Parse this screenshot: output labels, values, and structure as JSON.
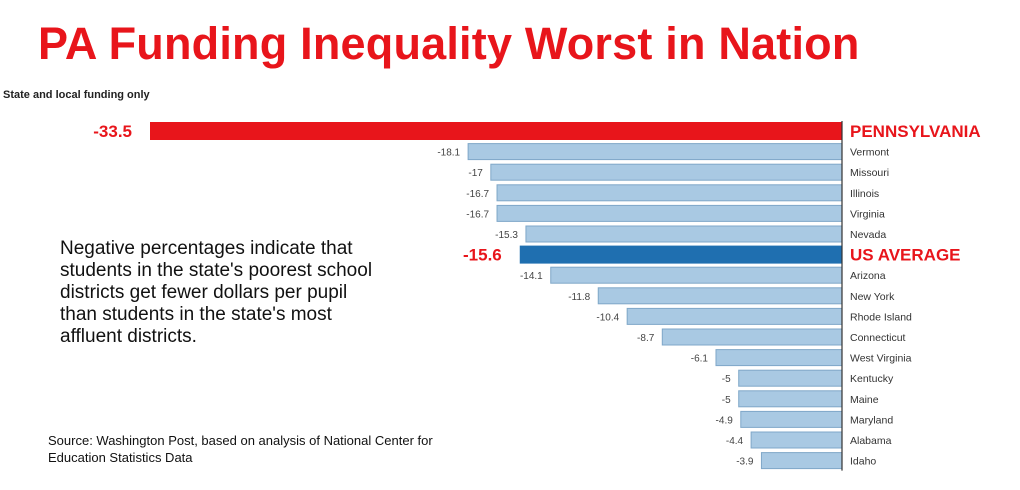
{
  "title": "PA Funding Inequality Worst in Nation",
  "note": "Negative percentages indicate that students in the state's poorest school districts get fewer dollars per pupil than students in the state's most affluent districts.",
  "source": "Source: Washington Post, based on analysis of National Center for Education Statistics Data",
  "chart_data": {
    "type": "bar",
    "orientation": "horizontal",
    "subtitle": "State and local funding only",
    "categories": [
      "PENNSYLVANIA",
      "Vermont",
      "Missouri",
      "Illinois",
      "Virginia",
      "Nevada",
      "US AVERAGE",
      "Arizona",
      "New York",
      "Rhode Island",
      "Connecticut",
      "West Virginia",
      "Kentucky",
      "Maine",
      "Maryland",
      "Alabama",
      "Idaho"
    ],
    "values": [
      -33.5,
      -18.1,
      -17,
      -16.7,
      -16.7,
      -15.3,
      -15.6,
      -14.1,
      -11.8,
      -10.4,
      -8.7,
      -6.1,
      -5,
      -5,
      -4.9,
      -4.4,
      -3.9
    ],
    "value_labels": [
      "-33.5",
      "-18.1",
      "-17",
      "-16.7",
      "-16.7",
      "-15.3",
      "-15.6",
      "-14.1",
      "-11.8",
      "-10.4",
      "-8.7",
      "-6.1",
      "-5",
      "-5",
      "-4.9",
      "-4.4",
      "-3.9"
    ],
    "highlight": {
      "PENNSYLVANIA": "#e8151b",
      "US AVERAGE": "#1f6fb0"
    },
    "colors": {
      "default_bar": "#a9c9e3",
      "bar_border": "#7fa7c8",
      "highlight_label": "#e8151b",
      "axis": "#333333"
    },
    "xlim": [
      -33.5,
      0
    ],
    "grid": false
  }
}
